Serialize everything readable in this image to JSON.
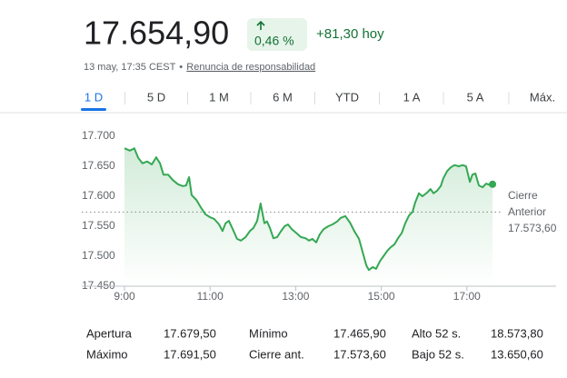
{
  "header": {
    "price": "17.654,90",
    "change_percent": "0,46 %",
    "change_today": "+81,30 hoy",
    "timestamp": "13 may, 17:35 CEST",
    "disclaimer": "Renuncia de responsabilidad"
  },
  "tabs": [
    "1 D",
    "5 D",
    "1 M",
    "6 M",
    "YTD",
    "1 A",
    "5 A",
    "Máx."
  ],
  "selected_tab": 0,
  "chart_data": {
    "type": "line",
    "color": "#34a853",
    "x": [
      9.0,
      9.13,
      9.23,
      9.32,
      9.42,
      9.53,
      9.64,
      9.74,
      9.83,
      9.91,
      10.02,
      10.13,
      10.25,
      10.36,
      10.44,
      10.51,
      10.57,
      10.68,
      10.78,
      10.89,
      11.0,
      11.1,
      11.21,
      11.29,
      11.36,
      11.44,
      11.53,
      11.63,
      11.72,
      11.83,
      11.93,
      12.01,
      12.1,
      12.18,
      12.27,
      12.33,
      12.4,
      12.48,
      12.57,
      12.65,
      12.74,
      12.82,
      12.91,
      13.01,
      13.12,
      13.23,
      13.31,
      13.39,
      13.48,
      13.56,
      13.65,
      13.76,
      13.86,
      13.97,
      14.05,
      14.16,
      14.27,
      14.37,
      14.48,
      14.58,
      14.65,
      14.71,
      14.8,
      14.88,
      14.97,
      15.05,
      15.14,
      15.22,
      15.31,
      15.39,
      15.48,
      15.56,
      15.65,
      15.73,
      15.79,
      15.88,
      15.96,
      16.07,
      16.15,
      16.22,
      16.3,
      16.39,
      16.45,
      16.54,
      16.62,
      16.71,
      16.81,
      16.9,
      16.98,
      17.07,
      17.13,
      17.2,
      17.28,
      17.37,
      17.45,
      17.56,
      17.6
    ],
    "values": [
      17680,
      17676,
      17680,
      17664,
      17655,
      17658,
      17653,
      17665,
      17655,
      17636,
      17636,
      17627,
      17620,
      17617,
      17618,
      17632,
      17602,
      17594,
      17582,
      17570,
      17565,
      17562,
      17553,
      17542,
      17555,
      17559,
      17545,
      17529,
      17526,
      17532,
      17542,
      17547,
      17559,
      17588,
      17555,
      17558,
      17547,
      17530,
      17532,
      17541,
      17550,
      17553,
      17545,
      17539,
      17532,
      17530,
      17526,
      17529,
      17523,
      17536,
      17545,
      17550,
      17553,
      17558,
      17564,
      17567,
      17556,
      17542,
      17529,
      17503,
      17485,
      17477,
      17482,
      17479,
      17492,
      17500,
      17509,
      17515,
      17520,
      17530,
      17539,
      17555,
      17568,
      17574,
      17589,
      17605,
      17600,
      17606,
      17612,
      17605,
      17609,
      17617,
      17630,
      17642,
      17648,
      17652,
      17650,
      17652,
      17650,
      17624,
      17636,
      17638,
      17618,
      17615,
      17621,
      17618,
      17620
    ],
    "xlim": [
      9,
      19
    ],
    "xticks": [
      {
        "value": 9,
        "label": "9:00"
      },
      {
        "value": 11,
        "label": "11:00"
      },
      {
        "value": 13,
        "label": "13:00"
      },
      {
        "value": 15,
        "label": "15:00"
      },
      {
        "value": 17,
        "label": "17:00"
      }
    ],
    "ylim": [
      17450,
      17700
    ],
    "yticks": [
      {
        "value": 17700,
        "label": "17.700"
      },
      {
        "value": 17650,
        "label": "17.650"
      },
      {
        "value": 17600,
        "label": "17.600"
      },
      {
        "value": 17550,
        "label": "17.550"
      },
      {
        "value": 17500,
        "label": "17.500"
      },
      {
        "value": 17450,
        "label": "17.450"
      }
    ],
    "reference_line": {
      "label": [
        "Cierre",
        "Anterior"
      ],
      "value": 17573.6,
      "value_label": "17.573,60"
    }
  },
  "stats": {
    "rows": [
      [
        [
          "Apertura",
          "17.679,50"
        ],
        [
          "Mínimo",
          "17.465,90"
        ],
        [
          "Alto 52 s.",
          "18.573,80"
        ]
      ],
      [
        [
          "Máximo",
          "17.691,50"
        ],
        [
          "Cierre ant.",
          "17.573,60"
        ],
        [
          "Bajo 52 s.",
          "13.650,60"
        ]
      ]
    ]
  }
}
